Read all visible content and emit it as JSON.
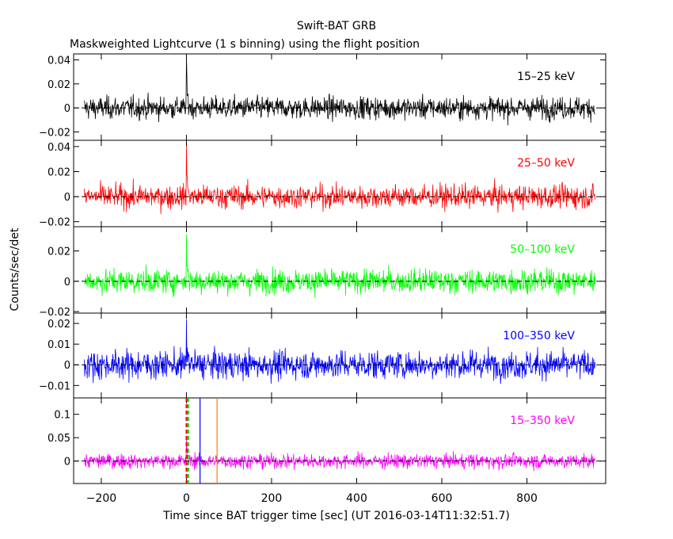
{
  "title": "Swift-BAT GRB",
  "subtitle": "Maskweighted Lightcurve (1 s binning) using the flight position",
  "chart_data": {
    "type": "line",
    "xlabel": "Time since BAT trigger time [sec] (UT 2016-03-14T11:32:51.7)",
    "ylabel": "Counts/sec/det",
    "xlim": [
      -265,
      985
    ],
    "x_ticks": [
      -200,
      0,
      200,
      400,
      600,
      800
    ],
    "x_tick_labels": [
      "−200",
      "0",
      "200",
      "400",
      "600",
      "800"
    ],
    "data_range": [
      -240,
      960
    ],
    "bin_seconds": 1,
    "grid": false,
    "panels": [
      {
        "name": "15–25 keV",
        "color": "#000000",
        "ylim": [
          -0.027,
          0.045
        ],
        "y_ticks": [
          -0.02,
          0,
          0.02,
          0.04
        ],
        "y_tick_labels": [
          "−0.02",
          "0",
          "0.02",
          "0.04"
        ],
        "noise_sigma": 0.0065,
        "spike_peak": 0.044
      },
      {
        "name": "25–50 keV",
        "color": "#ff0000",
        "ylim": [
          -0.024,
          0.045
        ],
        "y_ticks": [
          -0.02,
          0,
          0.02,
          0.04
        ],
        "y_tick_labels": [
          "−0.02",
          "0",
          "0.02",
          "0.04"
        ],
        "noise_sigma": 0.0065,
        "spike_peak": 0.042
      },
      {
        "name": "50–100 keV",
        "color": "#00ff00",
        "ylim": [
          -0.021,
          0.036
        ],
        "y_ticks": [
          -0.02,
          0,
          0.02
        ],
        "y_tick_labels": [
          "−0.02",
          "0",
          "0.02"
        ],
        "noise_sigma": 0.0055,
        "spike_peak": 0.031
      },
      {
        "name": "100–350 keV",
        "color": "#0000ff",
        "ylim": [
          -0.016,
          0.025
        ],
        "y_ticks": [
          -0.01,
          0,
          0.01,
          0.02
        ],
        "y_tick_labels": [
          "−0.01",
          "0",
          "0.01",
          "0.02"
        ],
        "noise_sigma": 0.0048,
        "spike_peak": 0.022
      },
      {
        "name": "15–350 keV",
        "color": "#ff00ff",
        "ylim": [
          -0.048,
          0.135
        ],
        "y_ticks": [
          0,
          0.05,
          0.1
        ],
        "y_tick_labels": [
          "0",
          "0.05",
          "0.1"
        ],
        "noise_sigma": 0.011,
        "spike_peak": 0.05
      }
    ],
    "markers": [
      {
        "x": 0,
        "color": "#ff0000",
        "style": "dashed"
      },
      {
        "x": 4,
        "color": "#00cc00",
        "style": "dashed"
      },
      {
        "x": 32,
        "color": "#0000ff",
        "style": "solid"
      },
      {
        "x": 72,
        "color": "#ff8000",
        "style": "solid"
      }
    ]
  }
}
